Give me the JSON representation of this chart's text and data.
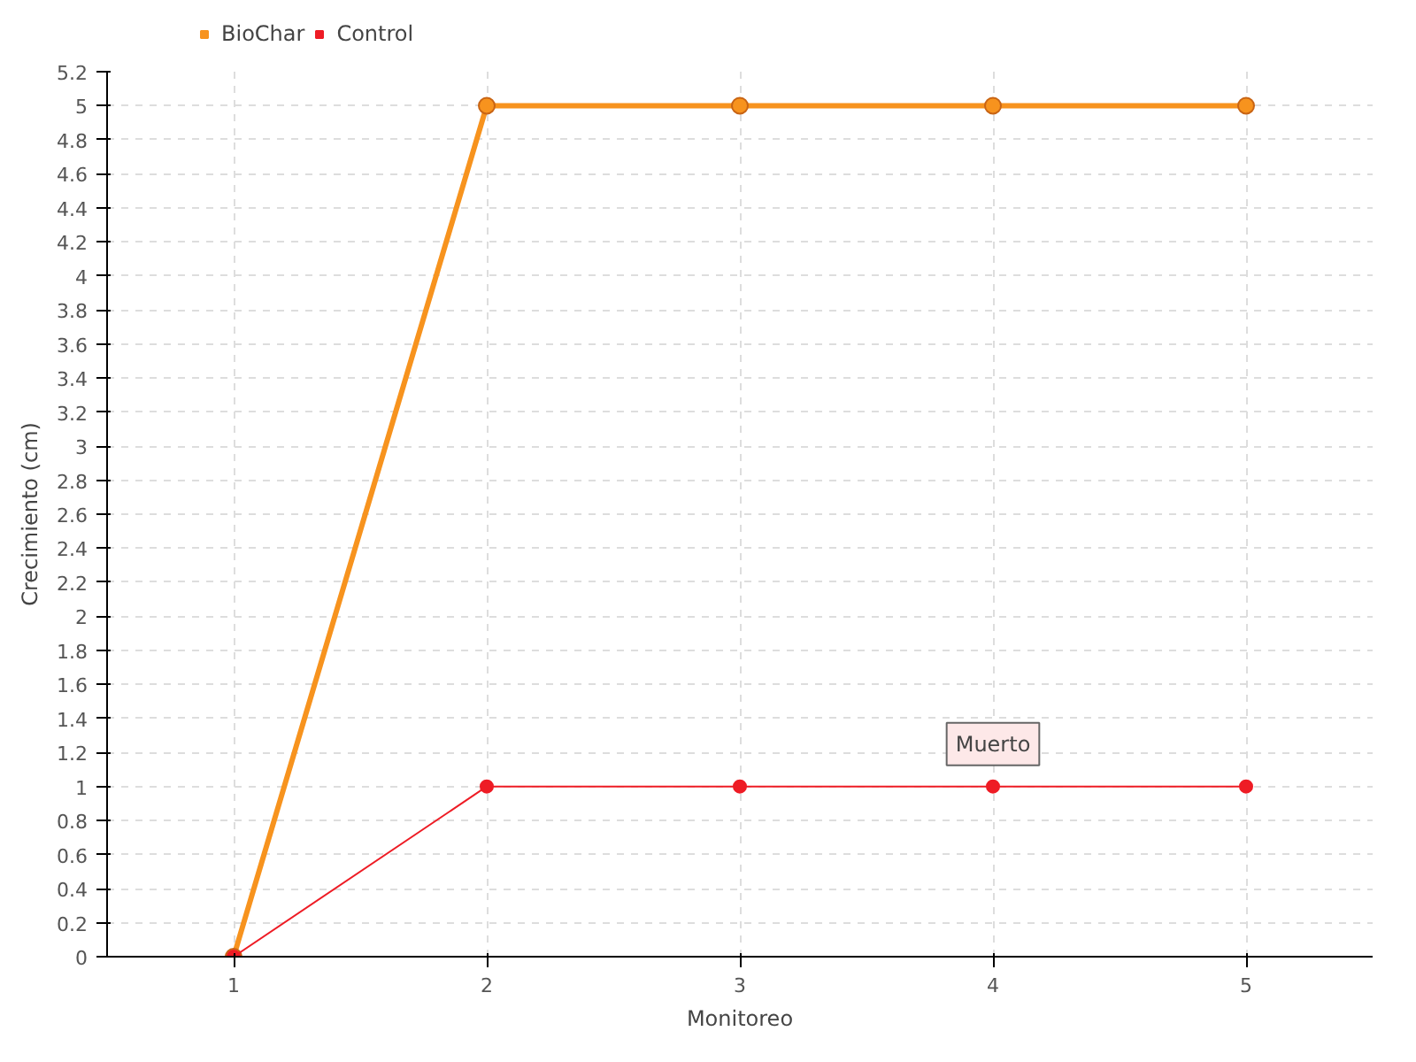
{
  "chart_data": {
    "type": "line",
    "xlabel": "Monitoreo",
    "ylabel": "Crecimiento (cm)",
    "x": [
      1,
      2,
      3,
      4,
      5
    ],
    "series": [
      {
        "name": "BioChar",
        "color": "#f7931e",
        "values": [
          0,
          5,
          5,
          5,
          5
        ]
      },
      {
        "name": "Control",
        "color": "#ee1c25",
        "values": [
          0,
          1,
          1,
          1,
          1
        ]
      }
    ],
    "xlim": [
      0.5,
      5.5
    ],
    "xticks": [
      1,
      2,
      3,
      4,
      5
    ],
    "ylim": [
      0,
      5.2
    ],
    "yticks": [
      0,
      0.2,
      0.4,
      0.6,
      0.8,
      1,
      1.2,
      1.4,
      1.6,
      1.8,
      2,
      2.2,
      2.4,
      2.6,
      2.8,
      3,
      3.2,
      3.4,
      3.6,
      3.8,
      4,
      4.2,
      4.4,
      4.6,
      4.8,
      5,
      5.2
    ],
    "annotations": [
      {
        "text": "Muerto",
        "x": 4,
        "y": 1
      }
    ],
    "grid": true,
    "legend": "top left",
    "marker": "circle",
    "line_style": "solid"
  }
}
